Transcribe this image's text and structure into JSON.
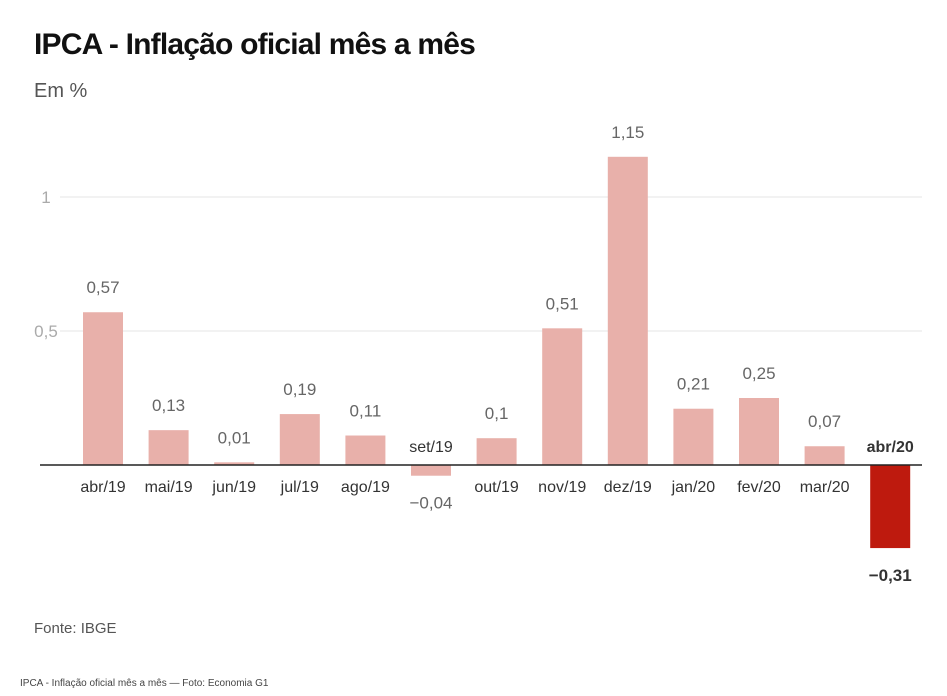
{
  "chart_data": {
    "type": "bar",
    "title": "IPCA - Inflação oficial mês a mês",
    "subtitle": "Em %",
    "categories": [
      "abr/19",
      "mai/19",
      "jun/19",
      "jul/19",
      "ago/19",
      "set/19",
      "out/19",
      "nov/19",
      "dez/19",
      "jan/20",
      "fev/20",
      "mar/20",
      "abr/20"
    ],
    "values": [
      0.57,
      0.13,
      0.01,
      0.19,
      0.11,
      -0.04,
      0.1,
      0.51,
      1.15,
      0.21,
      0.25,
      0.07,
      -0.31
    ],
    "value_labels": [
      "0,57",
      "0,13",
      "0,01",
      "0,19",
      "0,11",
      "−0,04",
      "0,1",
      "0,51",
      "1,15",
      "0,21",
      "0,25",
      "0,07",
      "−0,31"
    ],
    "yticks": [
      0.5,
      1
    ],
    "ytick_labels": [
      "0,5",
      "1"
    ],
    "highlight_index": 12,
    "colors": {
      "bar": "#e8b0aa",
      "highlight": "#be1a0e",
      "grid": "#e4e4e4",
      "axis": "#222222"
    },
    "grid": true
  },
  "source": "Fonte: IBGE",
  "caption": "IPCA - Inflação oficial mês a mês — Foto: Economia G1"
}
